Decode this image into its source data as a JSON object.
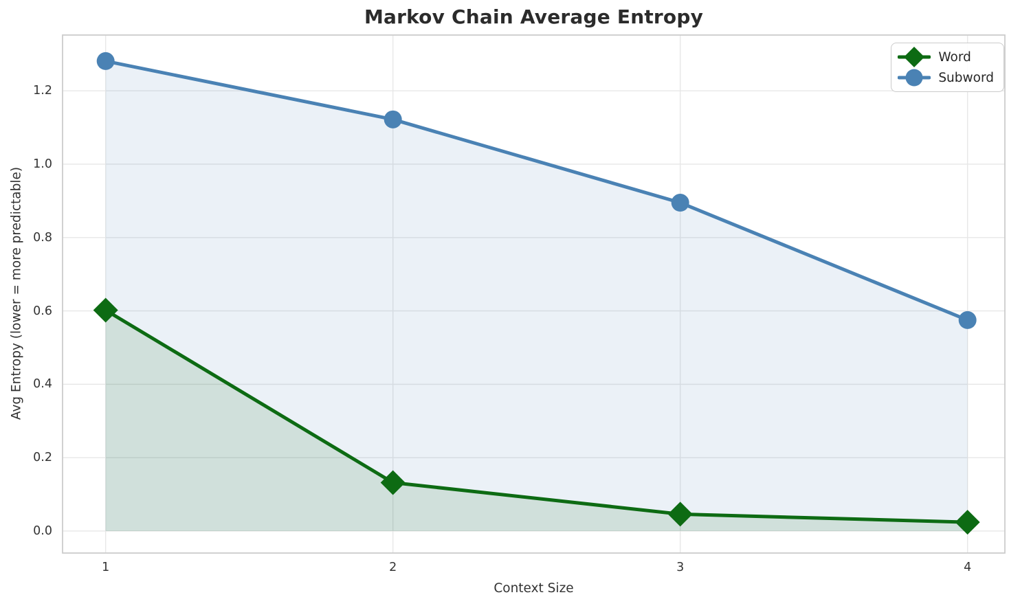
{
  "chart_data": {
    "type": "line",
    "title": "Markov Chain Average Entropy",
    "xlabel": "Context Size",
    "ylabel": "Avg Entropy (lower = more predictable)",
    "x": [
      1,
      2,
      3,
      4
    ],
    "xtick_labels": [
      "1",
      "2",
      "3",
      "4"
    ],
    "yticks": [
      0.0,
      0.2,
      0.4,
      0.6,
      0.8,
      1.0,
      1.2
    ],
    "ytick_labels": [
      "0.0",
      "0.2",
      "0.4",
      "0.6",
      "0.8",
      "1.0",
      "1.2"
    ],
    "xlim": [
      0.85,
      4.13
    ],
    "ylim": [
      -0.06,
      1.352
    ],
    "grid": true,
    "legend_position": "upper right",
    "series": [
      {
        "name": "Word",
        "marker": "diamond",
        "color": "#0d6b13",
        "fill_alpha": 0.12,
        "values": [
          0.602,
          0.132,
          0.046,
          0.024
        ]
      },
      {
        "name": "Subword",
        "marker": "circle",
        "color": "#4a82b4",
        "fill_alpha": 0.11,
        "values": [
          1.281,
          1.122,
          0.895,
          0.575
        ]
      }
    ],
    "style": {
      "grid_color": "#e7e7e7",
      "spine_color": "#cccccc",
      "line_width": 5,
      "marker_circle_radius": 13,
      "marker_diamond_half": 18,
      "title_color": "#2b2b2b",
      "tick_color": "#333333"
    }
  }
}
